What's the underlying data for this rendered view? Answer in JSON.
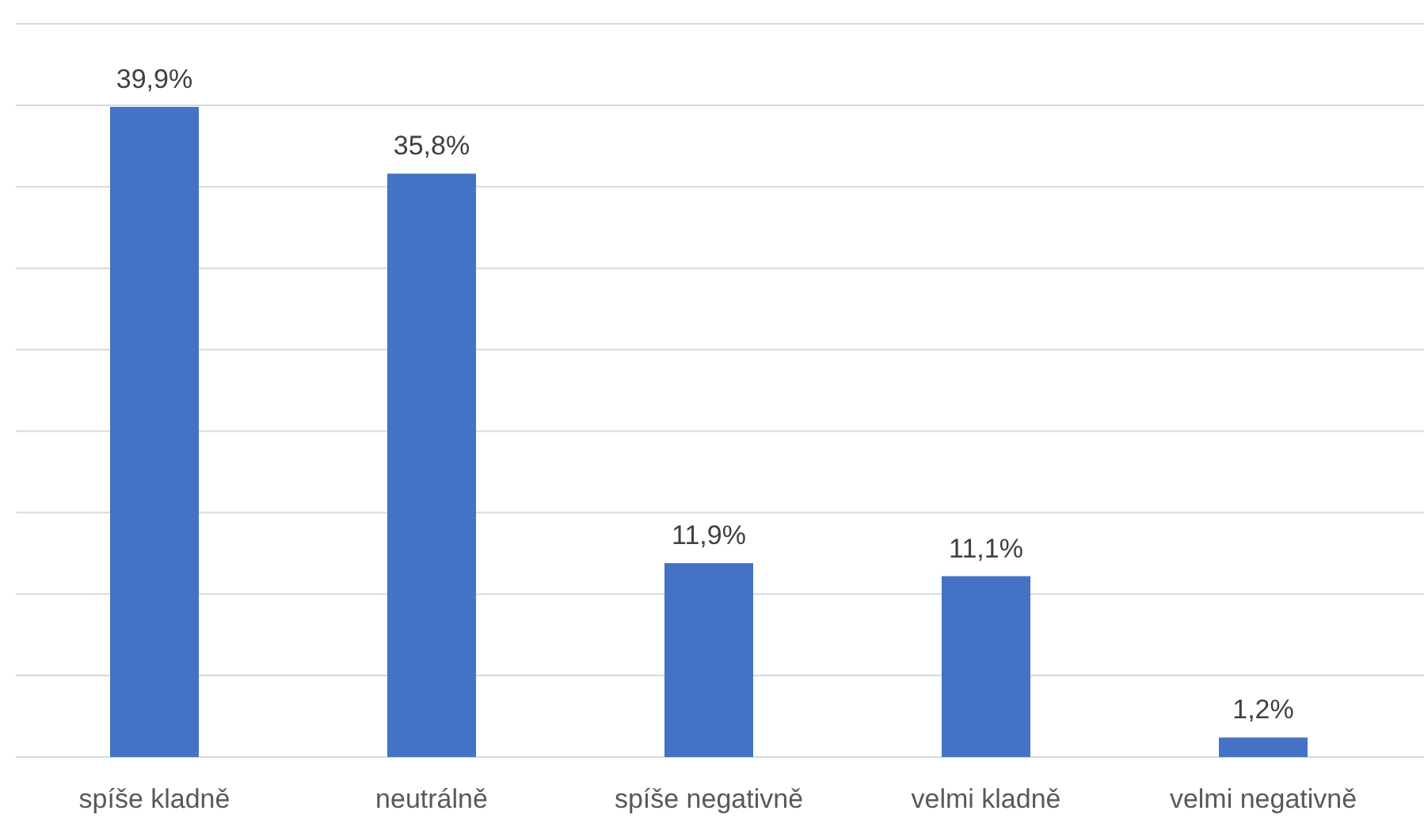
{
  "chart_data": {
    "type": "bar",
    "categories": [
      "spíše kladně",
      "neutrálně",
      "spíše negativně",
      "velmi kladně",
      "velmi negativně"
    ],
    "values": [
      39.9,
      35.8,
      11.9,
      11.1,
      1.2
    ],
    "value_labels": [
      "39,9%",
      "35,8%",
      "11,9%",
      "11,1%",
      "1,2%"
    ],
    "color": "#4472c4",
    "ylim": [
      0,
      45
    ],
    "yticks": [
      {
        "value": 0,
        "label": null
      },
      {
        "value": 5,
        "label": null
      },
      {
        "value": 10,
        "label": null
      },
      {
        "value": 15,
        "label": null
      },
      {
        "value": 20,
        "label": null
      },
      {
        "value": 25,
        "label": null
      },
      {
        "value": 30,
        "label": null
      },
      {
        "value": 35,
        "label": null
      },
      {
        "value": 40,
        "label": null
      },
      {
        "value": 45,
        "label": null
      }
    ],
    "grid": "y",
    "tick_labels": "x"
  }
}
